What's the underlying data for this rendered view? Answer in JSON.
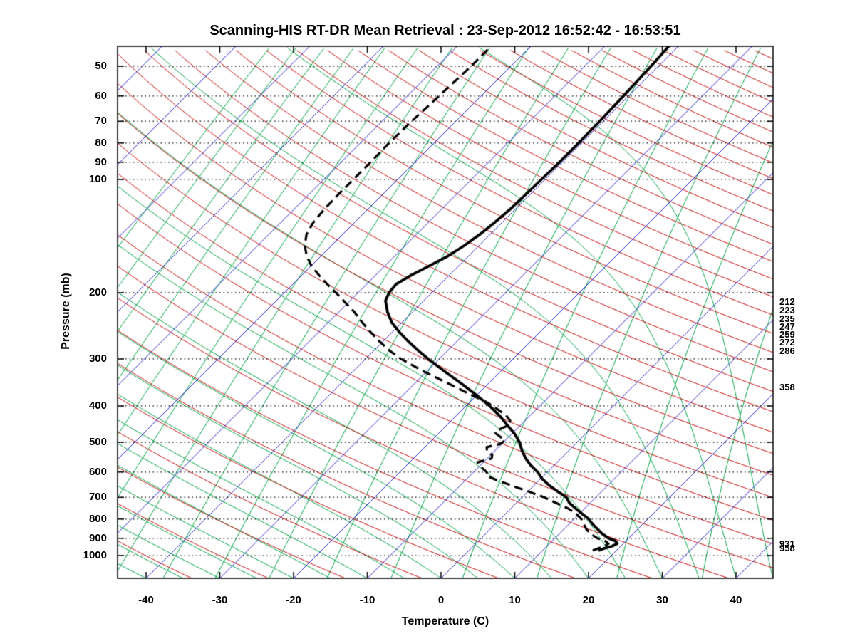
{
  "chart_data": {
    "type": "line",
    "chart_kind": "skew-t_log-p_sounding",
    "title": "Scanning-HIS RT-DR Mean Retrieval : 23-Sep-2012 16:52:42 - 16:53:51",
    "xlabel": "Temperature (C)",
    "ylabel": "Pressure (mb)",
    "y_scale": "log",
    "skew_deg": 45,
    "x_tick_labels_c": [
      -40,
      -30,
      -20,
      -10,
      0,
      10,
      20,
      30,
      40
    ],
    "y_tick_labels_mb": [
      50,
      60,
      70,
      80,
      90,
      100,
      200,
      300,
      400,
      500,
      600,
      700,
      800,
      900,
      1000
    ],
    "x_range_at_surface_c": [
      -43.9,
      45.0
    ],
    "pressure_range_mb": [
      44.3,
      1150
    ],
    "right_axis_pressure_labels_mb": [
      212,
      223,
      235,
      247,
      259,
      272,
      286,
      358,
      931,
      958
    ],
    "grid": {
      "isobars_dotted_mb": [
        50,
        60,
        70,
        80,
        90,
        100,
        200,
        300,
        400,
        500,
        600,
        700,
        800,
        900,
        1000
      ],
      "isotherms_c": {
        "min": -120,
        "max": 40,
        "step": 10,
        "color": "#2a2ad0"
      },
      "dry_adiabats_theta_k": {
        "min": 220,
        "max": 770,
        "step": 10,
        "color": "#cc1111"
      },
      "moist_adiabats_surface_c": {
        "min": -55,
        "max": 45,
        "step": 5,
        "color": "#00a545"
      },
      "mixing_ratio_lines_g_kg": [
        0.001,
        0.002,
        0.004,
        0.008,
        0.016,
        0.032,
        0.064,
        0.13,
        0.26,
        0.51,
        1.0,
        2.0,
        4.1,
        8.2,
        16.4,
        32.8
      ],
      "isobar_color": "#000000",
      "border_color": "#000000"
    },
    "series": [
      {
        "name": "temperature",
        "line": "solid",
        "color": "#000000",
        "pressure_mb": [
          970,
          958,
          945,
          930,
          915,
          900,
          875,
          850,
          825,
          800,
          775,
          750,
          725,
          700,
          675,
          650,
          625,
          600,
          575,
          550,
          525,
          500,
          475,
          450,
          425,
          400,
          375,
          350,
          325,
          300,
          285,
          270,
          255,
          240,
          225,
          210,
          200,
          190,
          180,
          170,
          160,
          150,
          140,
          130,
          120,
          110,
          100,
          90,
          80,
          70,
          60,
          50,
          44
        ],
        "temp_c": [
          17.6,
          18.0,
          18.8,
          19.2,
          18.6,
          17.3,
          15.8,
          14.5,
          13.2,
          12.0,
          10.4,
          8.8,
          7.2,
          6.0,
          4.0,
          2.0,
          0.2,
          -1.3,
          -3.2,
          -4.9,
          -6.4,
          -7.8,
          -9.6,
          -11.8,
          -14.1,
          -16.8,
          -20.0,
          -23.5,
          -27.4,
          -31.5,
          -34.0,
          -36.5,
          -39.0,
          -41.4,
          -43.4,
          -45.2,
          -45.8,
          -46.0,
          -45.2,
          -44.0,
          -42.8,
          -42.0,
          -41.4,
          -41.0,
          -40.7,
          -40.6,
          -40.5,
          -40.4,
          -40.4,
          -40.5,
          -40.7,
          -41.0,
          -41.3
        ]
      },
      {
        "name": "dew_point",
        "line": "dashed",
        "color": "#000000",
        "pressure_mb": [
          970,
          958,
          945,
          930,
          915,
          900,
          875,
          850,
          825,
          800,
          775,
          750,
          725,
          700,
          675,
          650,
          630,
          615,
          605,
          595,
          580,
          565,
          552,
          540,
          528,
          515,
          505,
          495,
          485,
          472,
          460,
          450,
          438,
          425,
          412,
          400,
          388,
          375,
          350,
          325,
          300,
          285,
          270,
          255,
          240,
          225,
          210,
          200,
          190,
          180,
          170,
          160,
          150,
          140,
          130,
          120,
          110,
          100,
          90,
          80,
          70,
          60,
          50,
          44
        ],
        "temp_c": [
          16.8,
          17.2,
          17.8,
          18.0,
          17.2,
          15.8,
          14.2,
          13.0,
          12.0,
          11.0,
          9.6,
          7.8,
          5.4,
          3.0,
          0.0,
          -3.2,
          -5.8,
          -7.6,
          -7.9,
          -8.6,
          -9.8,
          -10.8,
          -9.4,
          -9.8,
          -11.0,
          -11.6,
          -10.2,
          -10.0,
          -11.0,
          -12.4,
          -12.2,
          -11.6,
          -12.0,
          -13.2,
          -14.8,
          -16.4,
          -18.2,
          -20.6,
          -25.2,
          -30.2,
          -35.2,
          -37.9,
          -40.4,
          -42.9,
          -45.4,
          -47.9,
          -50.9,
          -53.0,
          -55.3,
          -57.6,
          -59.9,
          -61.9,
          -63.6,
          -64.9,
          -65.6,
          -65.9,
          -66.0,
          -66.0,
          -66.0,
          -66.1,
          -66.0,
          -65.7,
          -65.4,
          -65.4
        ]
      }
    ]
  }
}
